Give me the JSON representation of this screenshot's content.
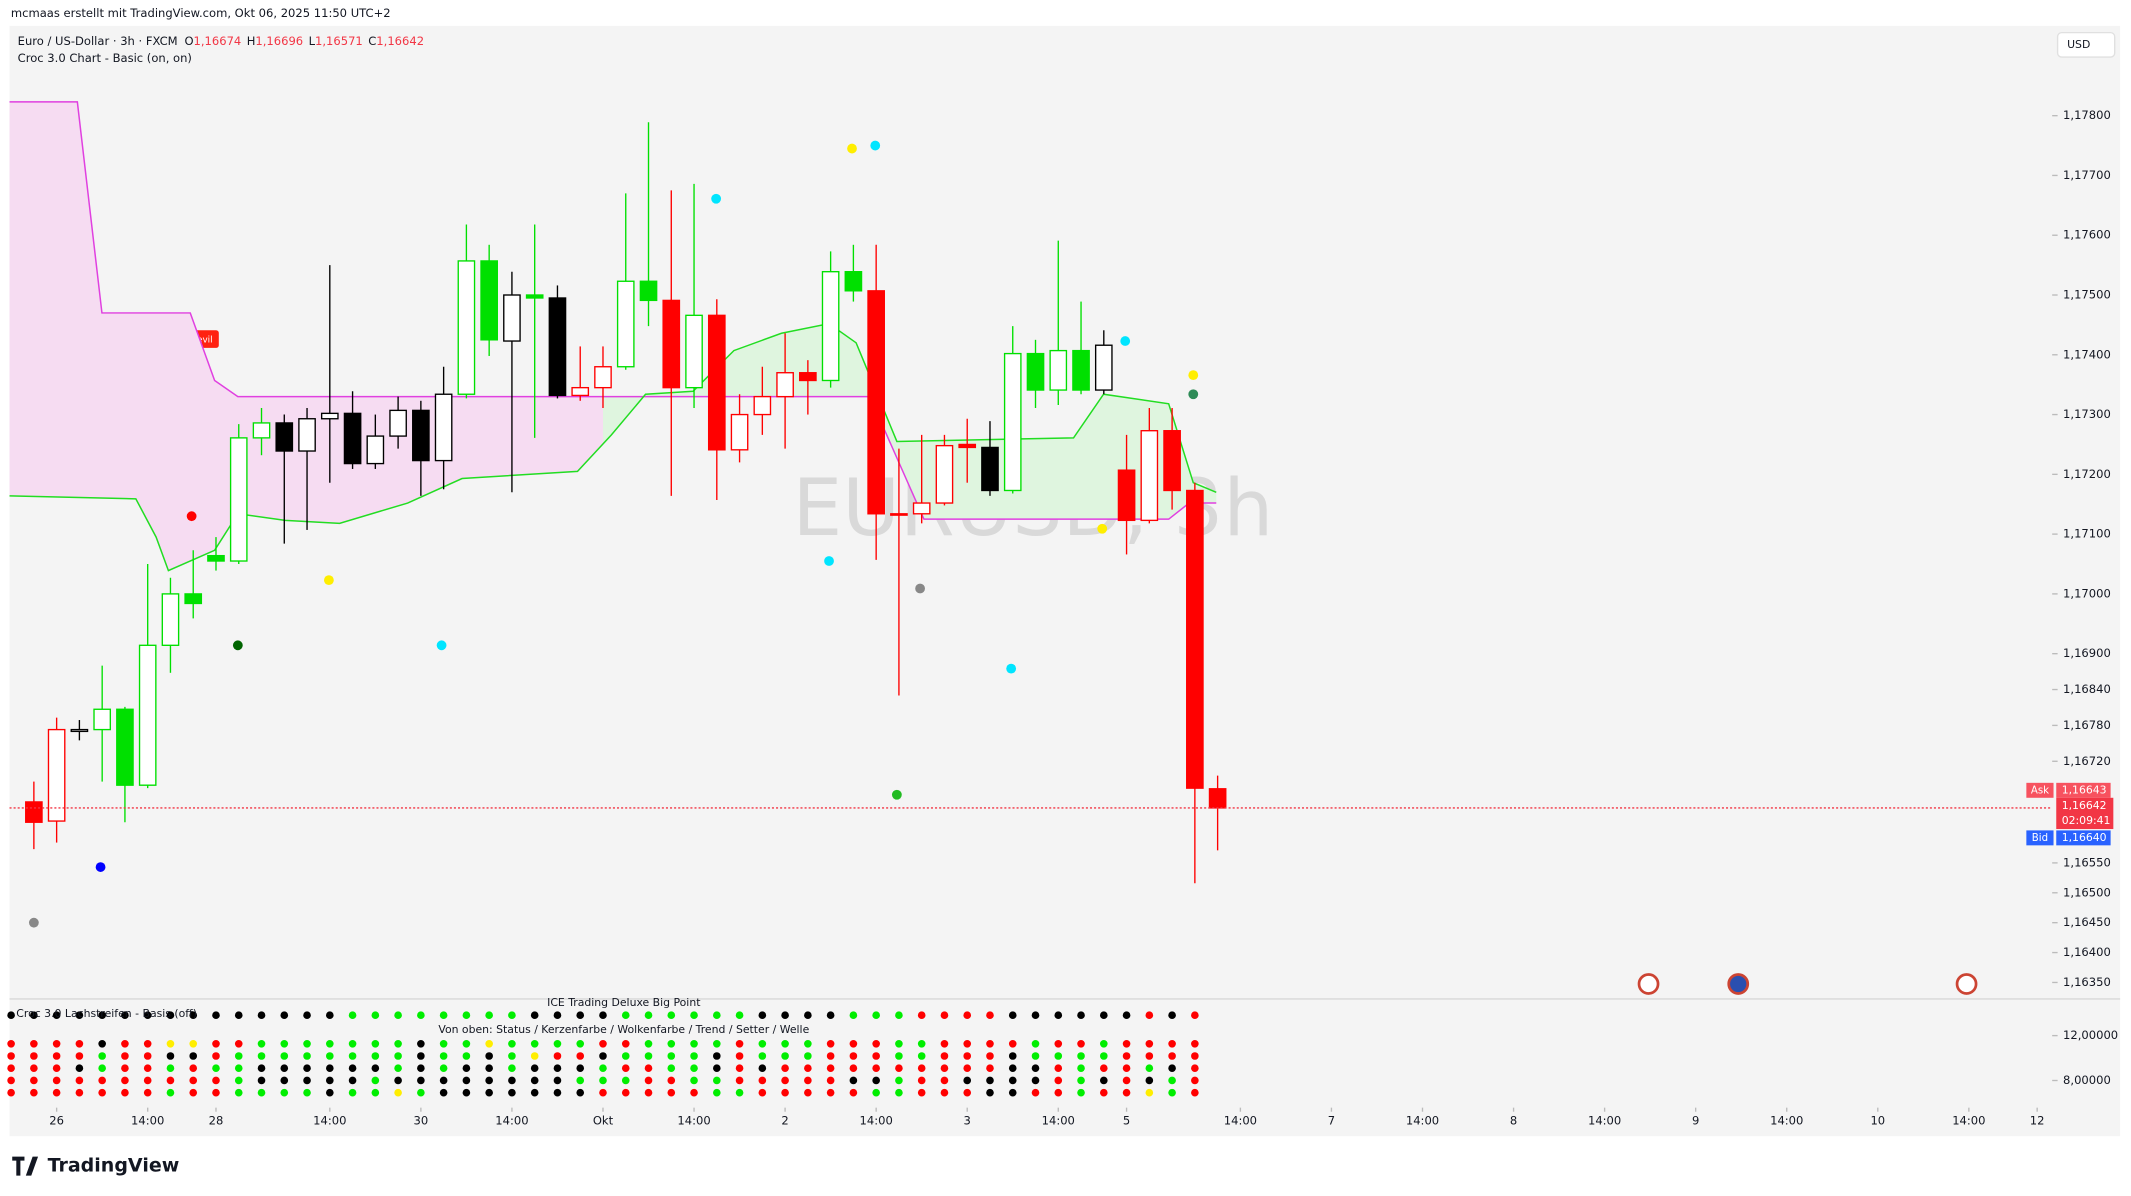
{
  "header": {
    "credit": "mcmaas erstellt mit TradingView.com, Okt 06, 2025 11:50 UTC+2",
    "symbol": "Euro / US-Dollar · 3h · FXCM",
    "ohlc": [
      {
        "key": "O",
        "value": 1.16674,
        "label": "1,16674"
      },
      {
        "key": "H",
        "value": 1.16696,
        "label": "1,16696"
      },
      {
        "key": "L",
        "value": 1.16571,
        "label": "1,16571"
      },
      {
        "key": "C",
        "value": 1.16642,
        "label": "1,16642"
      }
    ],
    "indicator": "Croc 3.0 Chart - Basic (on, on)",
    "watermark": "EURUSD, 3h",
    "currency": "USD"
  },
  "chart_data": {
    "type": "candlestick",
    "open": [
      1.16652,
      1.1662,
      1.16773,
      1.16773,
      1.16807,
      1.1668,
      1.16914,
      1.17,
      1.17055,
      1.17055,
      1.17261,
      1.17286,
      1.17239,
      1.17293,
      1.17302,
      1.17218,
      1.17264,
      1.17307,
      1.17223,
      1.17334,
      1.17557,
      1.17423,
      1.175,
      1.17495,
      1.17332,
      1.17345,
      1.1738,
      1.17523,
      1.17491,
      1.17345,
      1.17466,
      1.17241,
      1.173,
      1.1733,
      1.1737,
      1.17357,
      1.17539,
      1.17507,
      1.17134,
      1.17134,
      1.17152,
      1.1725,
      1.17245,
      1.17173,
      1.17402,
      1.17341,
      1.17407,
      1.17341,
      1.17207,
      1.17123,
      1.17273,
      1.17173,
      1.16674
    ],
    "high": [
      1.16686,
      1.16793,
      1.16789,
      1.1688,
      1.16811,
      1.1705,
      1.17027,
      1.17073,
      1.17095,
      1.17284,
      1.17311,
      1.173,
      1.17311,
      1.1755,
      1.17339,
      1.173,
      1.1733,
      1.17323,
      1.1738,
      1.17618,
      1.17584,
      1.17539,
      1.17618,
      1.17516,
      1.17414,
      1.17414,
      1.1767,
      1.17789,
      1.17675,
      1.17686,
      1.17493,
      1.17334,
      1.1738,
      1.17436,
      1.17391,
      1.17573,
      1.17584,
      1.17584,
      1.17243,
      1.17266,
      1.17266,
      1.17293,
      1.17289,
      1.17448,
      1.17425,
      1.17591,
      1.17489,
      1.17441,
      1.17266,
      1.17311,
      1.17311,
      1.17186,
      1.16696
    ],
    "low": [
      1.16573,
      1.16584,
      1.16755,
      1.16686,
      1.16618,
      1.16675,
      1.16868,
      1.16959,
      1.17039,
      1.1705,
      1.17232,
      1.17084,
      1.17107,
      1.17186,
      1.17209,
      1.17209,
      1.17243,
      1.17164,
      1.17175,
      1.17327,
      1.17398,
      1.1717,
      1.17261,
      1.17327,
      1.17323,
      1.17311,
      1.17375,
      1.17448,
      1.17164,
      1.17311,
      1.17157,
      1.1722,
      1.17266,
      1.17243,
      1.173,
      1.17345,
      1.17489,
      1.17057,
      1.1683,
      1.17118,
      1.17148,
      1.17186,
      1.17164,
      1.17168,
      1.17311,
      1.17316,
      1.17334,
      1.17334,
      1.17066,
      1.17118,
      1.17141,
      1.16516,
      1.16571
    ],
    "close": [
      1.16618,
      1.16773,
      1.1677,
      1.16807,
      1.1668,
      1.16914,
      1.17,
      1.16984,
      1.17064,
      1.17261,
      1.17286,
      1.17239,
      1.17293,
      1.17302,
      1.17218,
      1.17264,
      1.17307,
      1.17223,
      1.17334,
      1.17557,
      1.17425,
      1.175,
      1.17495,
      1.17332,
      1.17345,
      1.1738,
      1.17523,
      1.17491,
      1.17345,
      1.17466,
      1.17241,
      1.173,
      1.1733,
      1.1737,
      1.17357,
      1.17539,
      1.17507,
      1.17134,
      1.17132,
      1.17152,
      1.17248,
      1.17245,
      1.17173,
      1.17402,
      1.17341,
      1.17407,
      1.17341,
      1.17416,
      1.17123,
      1.17273,
      1.17173,
      1.16675,
      1.16642
    ],
    "fills": [
      "#ff0000",
      "#ffffff",
      "#ffffff",
      "#ffffff",
      "#00e000",
      "#ffffff",
      "#ffffff",
      "#00e000",
      "#00e000",
      "#ffffff",
      "#ffffff",
      "#000000",
      "#ffffff",
      "#ffffff",
      "#000000",
      "#ffffff",
      "#ffffff",
      "#000000",
      "#ffffff",
      "#ffffff",
      "#00e000",
      "#ffffff",
      "#00e000",
      "#000000",
      "#ffffff",
      "#ffffff",
      "#ffffff",
      "#00e000",
      "#ff0000",
      "#ffffff",
      "#ff0000",
      "#ffffff",
      "#ffffff",
      "#ffffff",
      "#ff0000",
      "#ffffff",
      "#00e000",
      "#ff0000",
      "#ff0000",
      "#ffffff",
      "#ffffff",
      "#ff0000",
      "#000000",
      "#ffffff",
      "#00e000",
      "#ffffff",
      "#00e000",
      "#ffffff",
      "#ff0000",
      "#ffffff",
      "#ff0000",
      "#ff0000",
      "#ff0000"
    ],
    "edges": [
      "#ff0000",
      "#ff0000",
      "#000000",
      "#00e000",
      "#00e000",
      "#00e000",
      "#00e000",
      "#00e000",
      "#00e000",
      "#00e000",
      "#00e000",
      "#000000",
      "#000000",
      "#000000",
      "#000000",
      "#000000",
      "#000000",
      "#000000",
      "#000000",
      "#00e000",
      "#00e000",
      "#000000",
      "#00e000",
      "#000000",
      "#ff0000",
      "#ff0000",
      "#00e000",
      "#00e000",
      "#ff0000",
      "#00e000",
      "#ff0000",
      "#ff0000",
      "#ff0000",
      "#ff0000",
      "#ff0000",
      "#00e000",
      "#00e000",
      "#ff0000",
      "#ff0000",
      "#ff0000",
      "#ff0000",
      "#ff0000",
      "#000000",
      "#00e000",
      "#00e000",
      "#00e000",
      "#00e000",
      "#000000",
      "#ff0000",
      "#ff0000",
      "#ff0000",
      "#ff0000",
      "#ff0000"
    ],
    "xlim": [
      -1.07,
      88.66
    ],
    "xticks": [
      {
        "value": 1,
        "label": "26"
      },
      {
        "value": 5,
        "label": "14:00"
      },
      {
        "value": 8,
        "label": "28"
      },
      {
        "value": 13,
        "label": "14:00"
      },
      {
        "value": 17,
        "label": "30"
      },
      {
        "value": 21,
        "label": "14:00"
      },
      {
        "value": 25,
        "label": "Okt"
      },
      {
        "value": 29,
        "label": "14:00"
      },
      {
        "value": 33,
        "label": "2"
      },
      {
        "value": 37,
        "label": "14:00"
      },
      {
        "value": 41,
        "label": "3"
      },
      {
        "value": 45,
        "label": "14:00"
      },
      {
        "value": 48,
        "label": "5"
      },
      {
        "value": 53,
        "label": "14:00"
      },
      {
        "value": 57,
        "label": "7"
      },
      {
        "value": 61,
        "label": "14:00"
      },
      {
        "value": 65,
        "label": "8"
      },
      {
        "value": 69,
        "label": "14:00"
      },
      {
        "value": 73,
        "label": "9"
      },
      {
        "value": 77,
        "label": "14:00"
      },
      {
        "value": 81,
        "label": "10"
      },
      {
        "value": 85,
        "label": "14:00"
      },
      {
        "value": 88,
        "label": "12"
      }
    ],
    "ylim": [
      1.16327,
      1.17948
    ],
    "yticks": [
      {
        "value": 1.178,
        "label": "1,17800"
      },
      {
        "value": 1.177,
        "label": "1,17700"
      },
      {
        "value": 1.176,
        "label": "1,17600"
      },
      {
        "value": 1.175,
        "label": "1,17500"
      },
      {
        "value": 1.174,
        "label": "1,17400"
      },
      {
        "value": 1.173,
        "label": "1,17300"
      },
      {
        "value": 1.172,
        "label": "1,17200"
      },
      {
        "value": 1.171,
        "label": "1,17100"
      },
      {
        "value": 1.17,
        "label": "1,17000"
      },
      {
        "value": 1.169,
        "label": "1,16900"
      },
      {
        "value": 1.1684,
        "label": "1,16840"
      },
      {
        "value": 1.1678,
        "label": "1,16780"
      },
      {
        "value": 1.1672,
        "label": "1,16720"
      },
      {
        "value": 1.1655,
        "label": "1,16550"
      },
      {
        "value": 1.165,
        "label": "1,16500"
      },
      {
        "value": 1.1645,
        "label": "1,16450"
      },
      {
        "value": 1.164,
        "label": "1,16400"
      },
      {
        "value": 1.1635,
        "label": "1,16350"
      }
    ],
    "lines": [
      {
        "color": "#e040e0",
        "x": [
          -1.07,
          1.91,
          2.99,
          6.87,
          7.94,
          8.96,
          36.72,
          39.1,
          49.85,
          50.75,
          51.94
        ],
        "values": [
          1.17823,
          1.17823,
          1.1747,
          1.1747,
          1.17357,
          1.1733,
          1.1733,
          1.17125,
          1.17125,
          1.17152,
          1.17152
        ]
      },
      {
        "color": "#22dd22",
        "x": [
          -1.07,
          4.48,
          5.37,
          5.91,
          7.94,
          8.96,
          11.04,
          13.43,
          16.42,
          18.81,
          23.88,
          25.37,
          26.87,
          28.96,
          30.75,
          32.84,
          34.93,
          36.12,
          37.91,
          45.67,
          46.99,
          49.85,
          50.93,
          51.94
        ],
        "values": [
          1.17164,
          1.17159,
          1.17095,
          1.17039,
          1.17073,
          1.17134,
          1.17123,
          1.17118,
          1.17152,
          1.17193,
          1.17205,
          1.17266,
          1.17334,
          1.17339,
          1.17407,
          1.17436,
          1.17452,
          1.1742,
          1.17255,
          1.17261,
          1.17334,
          1.17318,
          1.17186,
          1.1717
        ]
      }
    ],
    "cloud_colors": [
      "#f6dcf2",
      "#dff5df"
    ],
    "markers": {
      "x": [
        6.93,
        8.96,
        12.96,
        17.91,
        2.93,
        0,
        29.97,
        35.94,
        36.96,
        34.93,
        38.93,
        42.93,
        37.91,
        47.94,
        50.93,
        50.93,
        46.93
      ],
      "values": [
        1.1713,
        1.16914,
        1.17023,
        1.16914,
        1.16543,
        1.1645,
        1.17661,
        1.17745,
        1.1775,
        1.17055,
        1.17009,
        1.16875,
        1.16664,
        1.17423,
        1.17366,
        1.17334,
        1.17109
      ],
      "colors": [
        "#ff0000",
        "#006400",
        "#ffee00",
        "#00e5ff",
        "#0000ff",
        "#888888",
        "#00e5ff",
        "#ffee00",
        "#00e5ff",
        "#00e5ff",
        "#888888",
        "#00e5ff",
        "#22bb22",
        "#00e5ff",
        "#ffee00",
        "#2e8b57",
        "#ffee00"
      ]
    },
    "annotation": "Red Devil",
    "price_labels": {
      "ask_tag": "Ask",
      "ask": {
        "value": 1.16643,
        "label": "1,16643"
      },
      "last": {
        "value": 1.16642,
        "label": "1,16642"
      },
      "countdown": "02:09:41",
      "bid_tag": "Bid",
      "bid": {
        "value": 1.1664,
        "label": "1,16640"
      }
    }
  },
  "indicator_pane": {
    "title_left": "Croc 3.0 Lachstreifen - Basis (off)",
    "title": "ICE Trading Deluxe Big Point",
    "subtitle": "Von oben: Status / Kerzenfarbe / Wolkenfarbe / Trend / Setter / Welle",
    "ylim": [
      5.58,
      15.15
    ],
    "yticks": [
      {
        "value": 12,
        "label": "12,00000"
      },
      {
        "value": 8,
        "label": "8,00000"
      }
    ],
    "palette": {
      "r": "#ff0000",
      "g": "#00ee00",
      "k": "#000000",
      "y": "#ffee00"
    },
    "top_row": "kkkkkkkkkkkkkkkggggggggkkkkggggggkkkkgggrrrrkkkkkkrkr",
    "rows": [
      "rrrrkrryyrrgggggggkggyggggrrggggrgggrrrggrrrrgrrgrrrr",
      "rrrrgrrkkrggggggggkggkgyrrkggggkrgggrrrggrrrkggggrrrr",
      "rrrkgrrgrggkkkkkkgkgkkgkkkgrrggkrkrrrrrrrrrrkkrgrrgkr",
      "rrrrrrrrrrgkkkkkgkkkkkkkkgggrrggrrrrrkkgrrkkkkrgkrkgr",
      "rrrrrrrgrrggggkggygkkkkkkkrrrrrggrrrrrggrrrkkrrgrrygr"
    ]
  },
  "footer": {
    "logo": "TradingView"
  }
}
